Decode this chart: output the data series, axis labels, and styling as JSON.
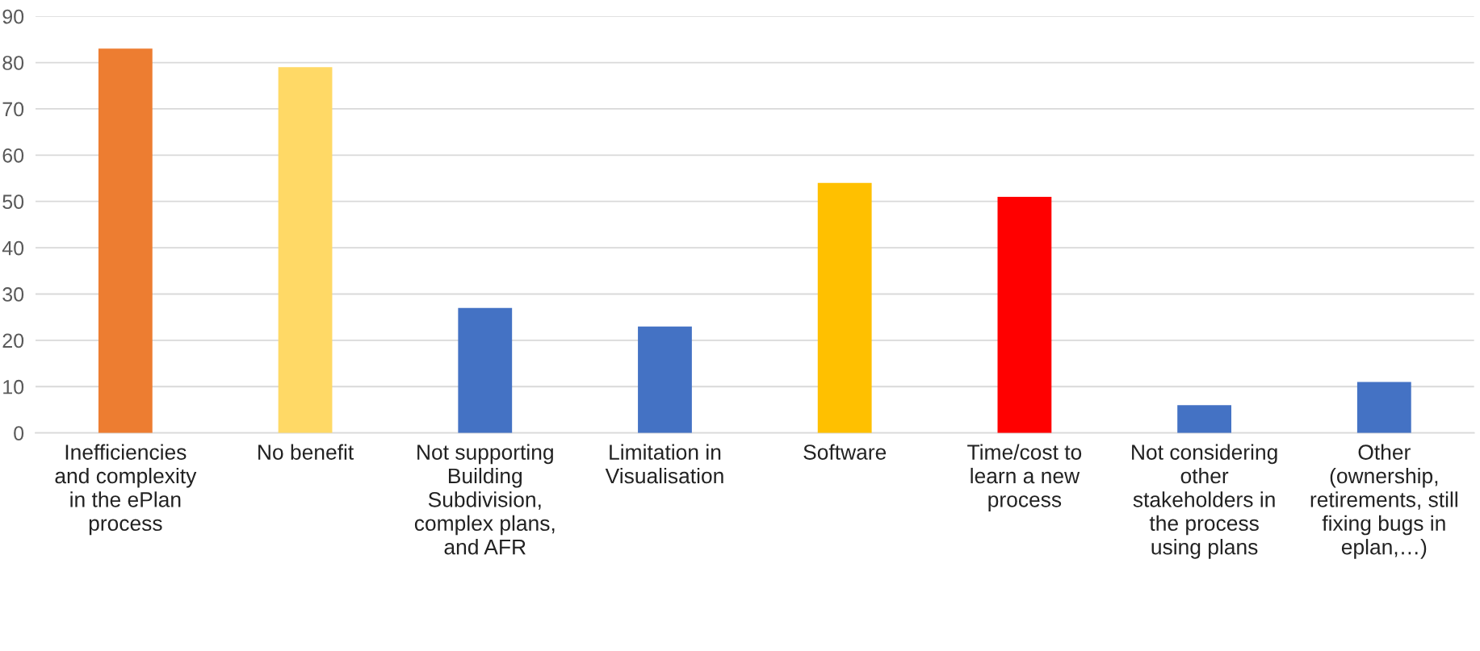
{
  "chart_data": {
    "type": "bar",
    "categories": [
      "Inefficiencies\nand complexity\nin the ePlan\nprocess",
      "No benefit",
      "Not supporting\nBuilding\nSubdivision,\ncomplex plans,\nand AFR",
      "Limitation in\nVisualisation",
      "Software",
      "Time/cost to\nlearn a new\nprocess",
      "Not considering\nother\nstakeholders in\nthe process\nusing plans",
      "Other\n(ownership,\nretirements, still\nfixing bugs in\neplan,…)"
    ],
    "values": [
      83,
      79,
      27,
      23,
      54,
      51,
      6,
      11
    ],
    "colors": [
      "#ed7d31",
      "#ffd966",
      "#4472c4",
      "#4472c4",
      "#ffc000",
      "#ff0000",
      "#4472c4",
      "#4472c4"
    ],
    "ylim": [
      0,
      90
    ],
    "yticks": [
      0,
      10,
      20,
      30,
      40,
      50,
      60,
      70,
      80,
      90
    ],
    "grid": "y"
  }
}
